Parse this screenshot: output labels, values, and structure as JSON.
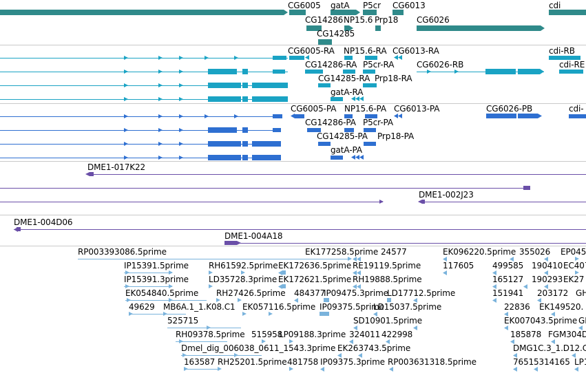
{
  "gene_track": {
    "labels": [
      "CG6005",
      "gatA",
      "P5cr",
      "CG6013",
      "cdi",
      "CG14286",
      "NP15.6",
      "Prp18",
      "CG6026",
      "CG14285"
    ]
  },
  "transcript_track": {
    "labels": [
      "CG6005-RA",
      "NP15.6-RA",
      "CG6013-RA",
      "cdi-RB",
      "CG14286-RA",
      "P5cr-RA",
      "CG6026-RB",
      "cdi-RE",
      "CG14285-RA",
      "Prp18-RA",
      "gatA-RA"
    ]
  },
  "protein_track": {
    "labels": [
      "CG6005-PA",
      "NP15.6-PA",
      "CG6013-PA",
      "CG6026-PB",
      "cdi-",
      "CG14286-PA",
      "P5cr-PA",
      "CG14285-PA",
      "Prp18-PA",
      "gatA-PA"
    ]
  },
  "bac_track": {
    "labels": [
      "DME1-017K22",
      "DME1-002J23",
      "DME1-004D06",
      "DME1-004A18"
    ]
  },
  "est_track": {
    "labels": [
      "RP003393086.5prime",
      "EK177258.5prime",
      "24577",
      "EK096220.5prime",
      "355026",
      "EP045",
      "IP15391.5prime",
      "RH61592.5prime",
      "EK172636.5prime",
      "RE19119.5prime",
      "117605",
      "499585",
      "190410",
      "EC407",
      "IP15391.3prime",
      "LD35728.3prime",
      "EK172621.5prime",
      "RH19888.5prime",
      "165127",
      "190293",
      "EK27",
      "EK054840.5prime",
      "RH27426.5prime",
      "484377",
      "IP09475.3prime",
      "LD17712.5prime",
      "151941",
      "203172",
      "GH",
      "49629",
      "MB6A.1_1.K08.C1",
      "EK057116.5prime",
      "IP09375.5prime",
      "LD15037.5prime",
      "22836",
      "EK149520.",
      "525715",
      "SD10901.5prime",
      "EK007043.5prime",
      "GH",
      "RH09378.5prime",
      "515958",
      "LP09188.3prime",
      "324011",
      "422998",
      "185878",
      "FGM304D",
      "Dmel_dig_006038_0611_1543.3prime",
      "EK263743.5prime",
      "DMG1C.3_1.D12.C",
      "163587",
      "RH25201.5prime",
      "481758",
      "IP09375.3prime",
      "RP003631318.5prime",
      "7651",
      "5314165",
      "LP1"
    ]
  },
  "colors": {
    "gene": "#2f8a8a",
    "transcript": "#1aa3c4",
    "protein": "#2e6fd1",
    "bac": "#6a4fa8",
    "est": "#7ab3dc",
    "separator": "#c9c9c9"
  }
}
